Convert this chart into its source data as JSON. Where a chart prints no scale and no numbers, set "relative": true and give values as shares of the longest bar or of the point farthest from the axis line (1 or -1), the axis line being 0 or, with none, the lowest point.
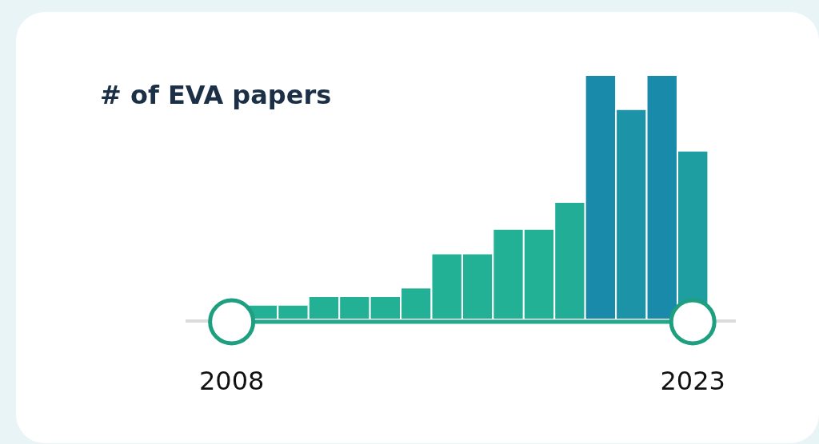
{
  "chart_data": {
    "type": "bar",
    "title": "# of EVA papers",
    "relative": true,
    "x": [
      2009,
      2010,
      2011,
      2012,
      2013,
      2014,
      2015,
      2016,
      2017,
      2018,
      2019,
      2020,
      2021,
      2022,
      2023
    ],
    "values": [
      0.06,
      0.06,
      0.095,
      0.095,
      0.095,
      0.13,
      0.27,
      0.27,
      0.37,
      0.37,
      0.48,
      1,
      0.86,
      1,
      0.69
    ],
    "colors": [
      "#22b194",
      "#22b194",
      "#22b194",
      "#22b194",
      "#22b194",
      "#22b194",
      "#22b194",
      "#22b194",
      "#22b194",
      "#22b194",
      "#21ad96",
      "#1a8aab",
      "#1c93a6",
      "#1a8aab",
      "#1e9ea0"
    ],
    "xlim": [
      2006.5,
      2024.4
    ],
    "xticks": [
      2008,
      2023
    ],
    "grid": false
  }
}
